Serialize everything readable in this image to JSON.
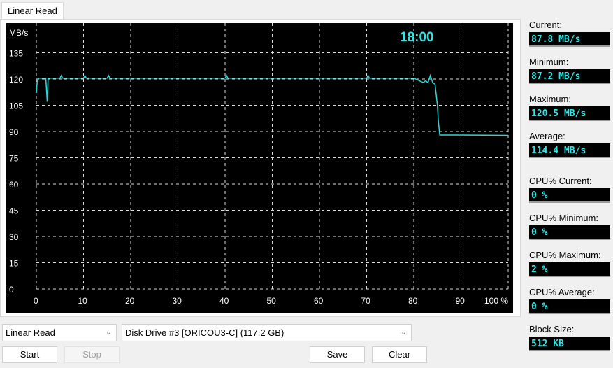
{
  "tab": {
    "label": "Linear Read"
  },
  "chart_data": {
    "type": "line",
    "ylabel": "MB/s",
    "ylim": [
      0,
      150
    ],
    "xlim": [
      0,
      100
    ],
    "yticks": [
      "0",
      "15",
      "30",
      "45",
      "60",
      "75",
      "90",
      "105",
      "120",
      "135"
    ],
    "xticks": [
      "0",
      "10",
      "20",
      "30",
      "40",
      "50",
      "60",
      "70",
      "80",
      "90",
      "100 %"
    ],
    "grid": true,
    "timer": "18:00",
    "line_color": "#2ed6d6",
    "x": [
      0,
      0.2,
      0.5,
      1,
      2,
      2.3,
      2.5,
      2.7,
      3,
      5,
      5.3,
      5.6,
      10,
      10.3,
      10.6,
      15,
      15.3,
      15.6,
      20,
      30,
      40,
      40.3,
      40.6,
      50,
      60,
      70,
      70.3,
      70.6,
      80,
      82,
      82.5,
      83,
      83.5,
      84,
      84.5,
      85,
      85.2,
      85.5,
      86,
      90,
      100
    ],
    "values": [
      112,
      119,
      120.5,
      120.5,
      120.5,
      107,
      120.5,
      120.5,
      120.5,
      120.5,
      122,
      120.5,
      120.5,
      122,
      120.5,
      120.5,
      122,
      120.5,
      120.5,
      120.5,
      120.5,
      122,
      120.5,
      120.5,
      120.5,
      120.5,
      122,
      120.5,
      120.5,
      118,
      119,
      118,
      122,
      118,
      117,
      105,
      96,
      88,
      88,
      88,
      87.8
    ]
  },
  "stats": [
    {
      "label": "Current:",
      "value": "87.8 MB/s"
    },
    {
      "label": "Minimum:",
      "value": "87.2 MB/s"
    },
    {
      "label": "Maximum:",
      "value": "120.5 MB/s"
    },
    {
      "label": "Average:",
      "value": "114.4 MB/s"
    },
    {
      "label": "CPU% Current:",
      "value": "0 %"
    },
    {
      "label": "CPU% Minimum:",
      "value": "0 %"
    },
    {
      "label": "CPU% Maximum:",
      "value": "2 %"
    },
    {
      "label": "CPU% Average:",
      "value": "0 %"
    },
    {
      "label": "Block Size:",
      "value": "512 KB"
    }
  ],
  "controls": {
    "test_select": "Linear Read",
    "drive_select": "Disk Drive #3  [ORICOU3-C]  (117.2 GB)",
    "start": "Start",
    "stop": "Stop",
    "save": "Save",
    "clear": "Clear"
  }
}
